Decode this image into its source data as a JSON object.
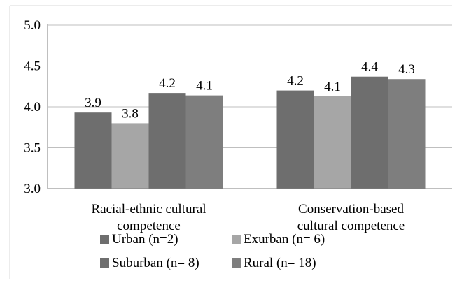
{
  "chart_data": {
    "type": "bar",
    "categories": [
      [
        "Racial-ethnic cultural",
        "competence"
      ],
      [
        "Conservation-based",
        "cultural competence"
      ]
    ],
    "series": [
      {
        "name": "Urban (n=2)",
        "color": "#6e6e6e",
        "values": [
          3.93,
          4.2
        ],
        "labels": [
          "3.9",
          "4.2"
        ]
      },
      {
        "name": "Exurban (n= 6)",
        "color": "#a6a6a6",
        "values": [
          3.8,
          4.13
        ],
        "labels": [
          "3.8",
          "4.1"
        ]
      },
      {
        "name": "Suburban (n= 8)",
        "color": "#6e6e6e",
        "values": [
          4.17,
          4.37
        ],
        "labels": [
          "4.2",
          "4.4"
        ]
      },
      {
        "name": "Rural (n= 18)",
        "color": "#7e7e7e",
        "values": [
          4.14,
          4.34
        ],
        "labels": [
          "4.1",
          "4.3"
        ]
      }
    ],
    "yticks": [
      "3.0",
      "3.5",
      "4.0",
      "4.5",
      "5.0"
    ],
    "ylim": [
      3.0,
      5.0
    ],
    "grid": true,
    "legend_position": "bottom"
  }
}
